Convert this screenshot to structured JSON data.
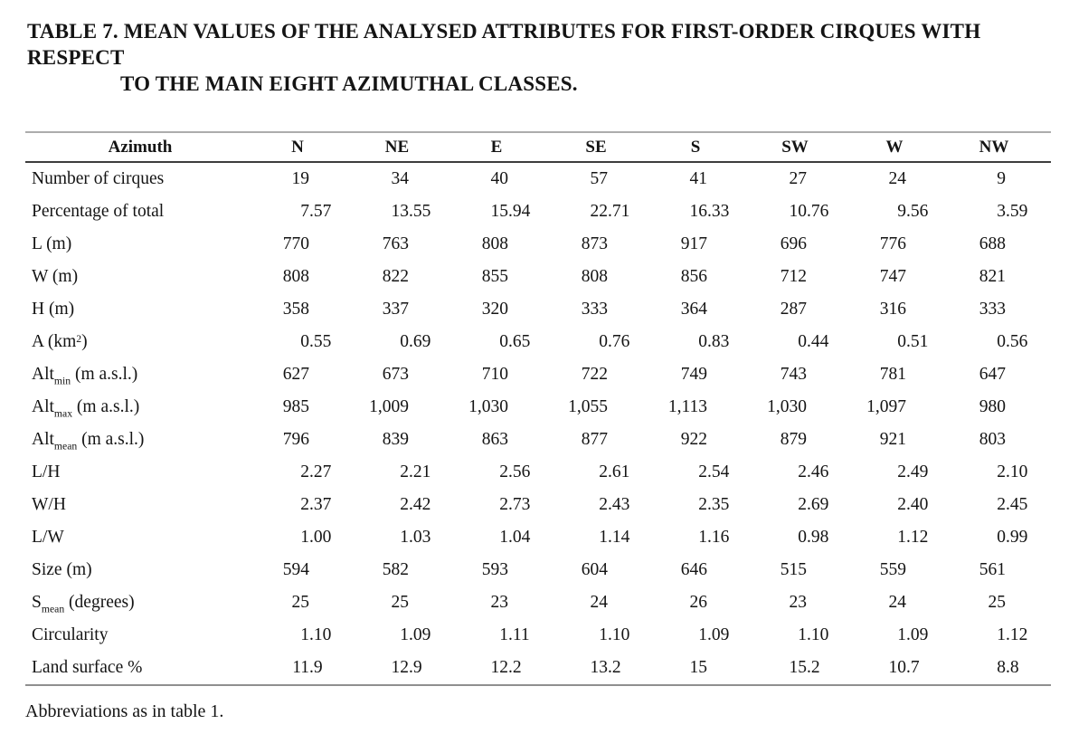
{
  "caption": {
    "line1": "TABLE 7. MEAN VALUES OF THE ANALYSED ATTRIBUTES FOR FIRST-ORDER CIRQUES WITH RESPECT",
    "line2": "TO THE MAIN EIGHT AZIMUTHAL CLASSES."
  },
  "table": {
    "header": [
      "Azimuth",
      "N",
      "NE",
      "E",
      "SE",
      "S",
      "SW",
      "W",
      "NW"
    ],
    "rows": [
      {
        "label": [
          {
            "t": "Number of cirques"
          }
        ],
        "values": [
          "19",
          "34",
          "40",
          "57",
          "41",
          "27",
          "24",
          "9"
        ]
      },
      {
        "label": [
          {
            "t": "Percentage of total"
          }
        ],
        "values": [
          "7.57",
          "13.55",
          "15.94",
          "22.71",
          "16.33",
          "10.76",
          "9.56",
          "3.59"
        ]
      },
      {
        "label": [
          {
            "t": "L (m)"
          }
        ],
        "values": [
          "770",
          "763",
          "808",
          "873",
          "917",
          "696",
          "776",
          "688"
        ]
      },
      {
        "label": [
          {
            "t": "W (m)"
          }
        ],
        "values": [
          "808",
          "822",
          "855",
          "808",
          "856",
          "712",
          "747",
          "821"
        ]
      },
      {
        "label": [
          {
            "t": "H (m)"
          }
        ],
        "values": [
          "358",
          "337",
          "320",
          "333",
          "364",
          "287",
          "316",
          "333"
        ]
      },
      {
        "label": [
          {
            "t": "A (km"
          },
          {
            "sup": "2"
          },
          {
            "t": ")"
          }
        ],
        "values": [
          "0.55",
          "0.69",
          "0.65",
          "0.76",
          "0.83",
          "0.44",
          "0.51",
          "0.56"
        ]
      },
      {
        "label": [
          {
            "t": "Alt"
          },
          {
            "sub": "min"
          },
          {
            "t": " (m a.s.l.)"
          }
        ],
        "values": [
          "627",
          "673",
          "710",
          "722",
          "749",
          "743",
          "781",
          "647"
        ]
      },
      {
        "label": [
          {
            "t": "Alt"
          },
          {
            "sub": "max"
          },
          {
            "t": " (m a.s.l.)"
          }
        ],
        "values": [
          "985",
          "1,009",
          "1,030",
          "1,055",
          "1,113",
          "1,030",
          "1,097",
          "980"
        ]
      },
      {
        "label": [
          {
            "t": "Alt"
          },
          {
            "sub": "mean"
          },
          {
            "t": " (m a.s.l.)"
          }
        ],
        "values": [
          "796",
          "839",
          "863",
          "877",
          "922",
          "879",
          "921",
          "803"
        ]
      },
      {
        "label": [
          {
            "t": "L/H"
          }
        ],
        "values": [
          "2.27",
          "2.21",
          "2.56",
          "2.61",
          "2.54",
          "2.46",
          "2.49",
          "2.10"
        ]
      },
      {
        "label": [
          {
            "t": "W/H"
          }
        ],
        "values": [
          "2.37",
          "2.42",
          "2.73",
          "2.43",
          "2.35",
          "2.69",
          "2.40",
          "2.45"
        ]
      },
      {
        "label": [
          {
            "t": "L/W"
          }
        ],
        "values": [
          "1.00",
          "1.03",
          "1.04",
          "1.14",
          "1.16",
          "0.98",
          "1.12",
          "0.99"
        ]
      },
      {
        "label": [
          {
            "t": "Size (m)"
          }
        ],
        "values": [
          "594",
          "582",
          "593",
          "604",
          "646",
          "515",
          "559",
          "561"
        ]
      },
      {
        "label": [
          {
            "t": "S"
          },
          {
            "sub": "mean"
          },
          {
            "t": " (degrees)"
          }
        ],
        "values": [
          "25",
          "25",
          "23",
          "24",
          "26",
          "23",
          "24",
          "25"
        ]
      },
      {
        "label": [
          {
            "t": "Circularity"
          }
        ],
        "values": [
          "1.10",
          "1.09",
          "1.11",
          "1.10",
          "1.09",
          "1.10",
          "1.09",
          "1.12"
        ]
      },
      {
        "label": [
          {
            "t": "Land surface %"
          }
        ],
        "values": [
          "11.9",
          "12.9",
          "12.2",
          "13.2",
          "15",
          "15.2",
          "10.7",
          "8.8"
        ]
      }
    ]
  },
  "footnote": "Abbreviations as in table 1.",
  "colors": {
    "text": "#141414",
    "rule_top": "#acacac",
    "rule_header": "#3d3d3d",
    "rule_bottom": "#8f8f8f",
    "background": "#ffffff"
  }
}
